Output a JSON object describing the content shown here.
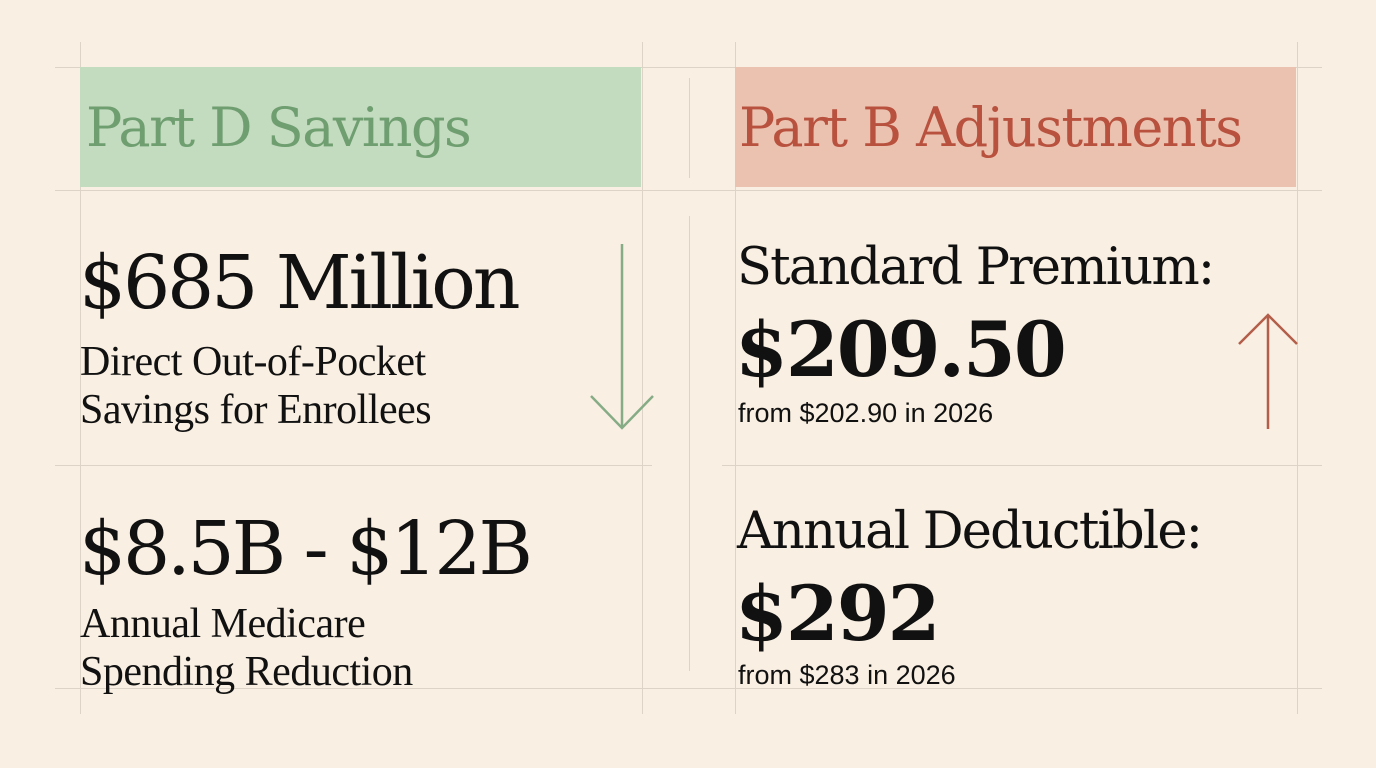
{
  "colors": {
    "background": "#f9efe2",
    "grid": "#ddd3c6",
    "part_d_fill": "#c3dbbe",
    "part_d_text": "#6f9e70",
    "part_b_fill": "#ebc2af",
    "part_b_text": "#b8513e",
    "arrow_down": "#86ac86",
    "arrow_up": "#b35e4b"
  },
  "part_d": {
    "title": "Part D Savings",
    "metric1": {
      "value": "$685 Million",
      "desc_line1": "Direct Out-of-Pocket",
      "desc_line2": "Savings for Enrollees"
    },
    "metric2": {
      "value": "$8.5B - $12B",
      "desc_line1": "Annual Medicare",
      "desc_line2": "Spending Reduction"
    },
    "trend_icon": "arrow-down-icon"
  },
  "part_b": {
    "title": "Part B Adjustments",
    "premium": {
      "label": "Standard Premium:",
      "value": "$209.50",
      "note": "from $202.90 in 2026"
    },
    "deductible": {
      "label": "Annual Deductible:",
      "value": "$292",
      "note": "from $283 in 2026"
    },
    "trend_icon": "arrow-up-icon"
  }
}
